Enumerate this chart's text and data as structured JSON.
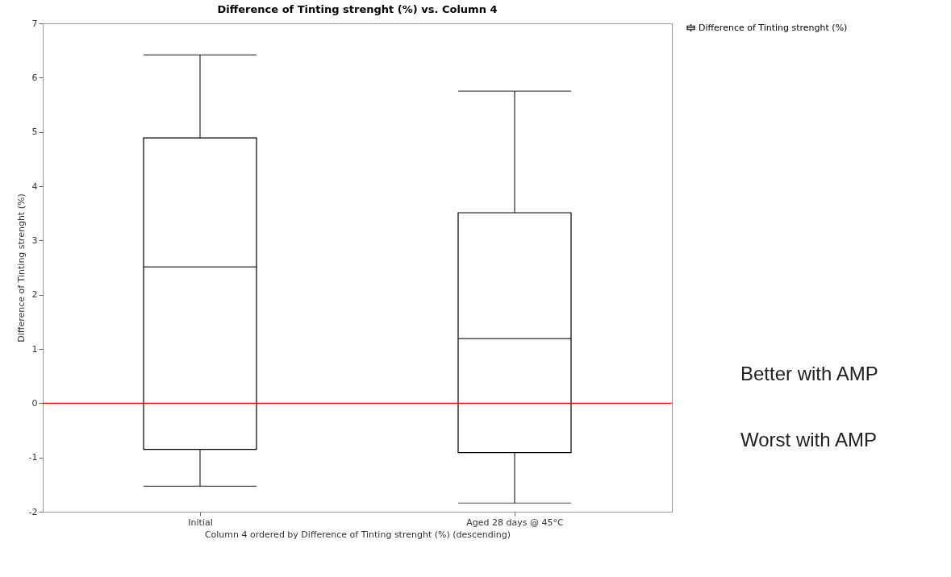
{
  "chart_data": {
    "type": "box",
    "title": "Difference of Tinting strenght (%) vs. Column 4",
    "xlabel": "Column 4 ordered by Difference of Tinting strenght (%) (descending)",
    "ylabel": "Difference of Tinting strenght (%)",
    "categories": [
      "Initial",
      "Aged 28 days @ 45°C"
    ],
    "series": [
      {
        "name": "Difference of Tinting strenght (%)",
        "color": "#000000",
        "boxes": [
          {
            "low": -1.53,
            "q1": -0.85,
            "median": 2.51,
            "q3": 4.89,
            "high": 6.42
          },
          {
            "low": -1.84,
            "q1": -0.91,
            "median": 1.19,
            "q3": 3.51,
            "high": 5.75
          }
        ]
      }
    ],
    "ylim": [
      -2,
      7
    ],
    "yticks": [
      -2,
      -1,
      0,
      1,
      2,
      3,
      4,
      5,
      6,
      7
    ],
    "grid": false,
    "legend": "top right",
    "ref_lines": [
      {
        "axis": "y",
        "value": 0,
        "color": "#ff0000"
      }
    ],
    "annotations": [
      "Better with AMP",
      "Worst with AMP"
    ]
  }
}
